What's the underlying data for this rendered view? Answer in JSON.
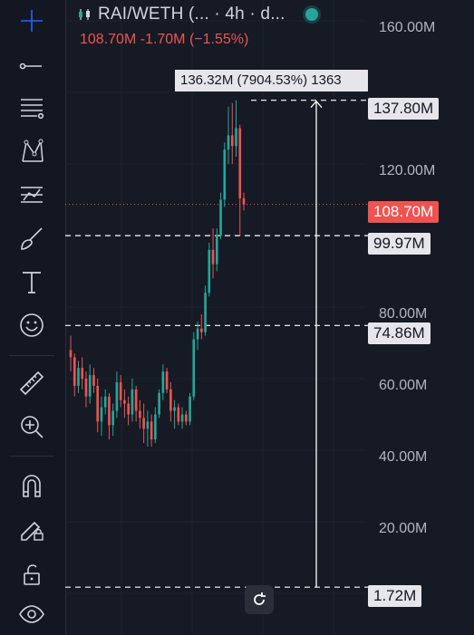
{
  "header": {
    "symbol": "RAI/WETH (... · 4h · d..."
  },
  "price_line": "108.70M  -1.70M  (−1.55%)",
  "measure_label": "136.32M (7904.53%)  1363",
  "price_axis": [
    "160.00M",
    "120.00M",
    "80.00M",
    "60.00M",
    "40.00M",
    "20.00M"
  ],
  "price_tags": {
    "top": "137.80M",
    "current": "108.70M",
    "level1": "99.97M",
    "level2": "74.86M",
    "bottom": "1.72M"
  },
  "colors": {
    "up": "#26a69a",
    "down": "#ef5350",
    "background": "#161a25"
  },
  "toolbar_icons": [
    "crosshair-icon",
    "trend-line-icon",
    "fib-retracement-icon",
    "pattern-icon",
    "prediction-icon",
    "brush-icon",
    "text-icon",
    "emoji-icon",
    "ruler-icon",
    "zoom-in-icon",
    "magnet-icon",
    "lock-drawing-icon",
    "unlock-icon",
    "eye-icon"
  ],
  "chart_data": {
    "type": "candlestick",
    "y_unit": "M",
    "candles": [
      {
        "o": 68,
        "h": 72,
        "l": 62,
        "c": 66
      },
      {
        "o": 66,
        "h": 67,
        "l": 55,
        "c": 58
      },
      {
        "o": 58,
        "h": 65,
        "l": 56,
        "c": 63
      },
      {
        "o": 63,
        "h": 66,
        "l": 57,
        "c": 60
      },
      {
        "o": 60,
        "h": 62,
        "l": 52,
        "c": 55
      },
      {
        "o": 55,
        "h": 64,
        "l": 53,
        "c": 61
      },
      {
        "o": 61,
        "h": 63,
        "l": 56,
        "c": 58
      },
      {
        "o": 58,
        "h": 60,
        "l": 45,
        "c": 48
      },
      {
        "o": 48,
        "h": 55,
        "l": 44,
        "c": 52
      },
      {
        "o": 52,
        "h": 57,
        "l": 50,
        "c": 55
      },
      {
        "o": 55,
        "h": 56,
        "l": 43,
        "c": 47
      },
      {
        "o": 47,
        "h": 53,
        "l": 44,
        "c": 51
      },
      {
        "o": 51,
        "h": 62,
        "l": 49,
        "c": 59
      },
      {
        "o": 59,
        "h": 61,
        "l": 52,
        "c": 54
      },
      {
        "o": 54,
        "h": 57,
        "l": 49,
        "c": 53
      },
      {
        "o": 53,
        "h": 55,
        "l": 47,
        "c": 50
      },
      {
        "o": 50,
        "h": 60,
        "l": 48,
        "c": 57
      },
      {
        "o": 57,
        "h": 58,
        "l": 48,
        "c": 51
      },
      {
        "o": 51,
        "h": 54,
        "l": 46,
        "c": 49
      },
      {
        "o": 49,
        "h": 53,
        "l": 42,
        "c": 46
      },
      {
        "o": 46,
        "h": 51,
        "l": 41,
        "c": 48
      },
      {
        "o": 48,
        "h": 50,
        "l": 41,
        "c": 43
      },
      {
        "o": 43,
        "h": 52,
        "l": 42,
        "c": 50
      },
      {
        "o": 50,
        "h": 57,
        "l": 49,
        "c": 56
      },
      {
        "o": 56,
        "h": 64,
        "l": 54,
        "c": 62
      },
      {
        "o": 62,
        "h": 63,
        "l": 56,
        "c": 57
      },
      {
        "o": 57,
        "h": 59,
        "l": 48,
        "c": 51
      },
      {
        "o": 51,
        "h": 54,
        "l": 46,
        "c": 52
      },
      {
        "o": 52,
        "h": 53,
        "l": 47,
        "c": 48
      },
      {
        "o": 48,
        "h": 52,
        "l": 46,
        "c": 50
      },
      {
        "o": 50,
        "h": 51,
        "l": 47,
        "c": 48
      },
      {
        "o": 48,
        "h": 56,
        "l": 47,
        "c": 55
      },
      {
        "o": 55,
        "h": 73,
        "l": 54,
        "c": 71
      },
      {
        "o": 71,
        "h": 76,
        "l": 68,
        "c": 74
      },
      {
        "o": 74,
        "h": 78,
        "l": 71,
        "c": 73
      },
      {
        "o": 73,
        "h": 86,
        "l": 72,
        "c": 84
      },
      {
        "o": 84,
        "h": 98,
        "l": 83,
        "c": 96
      },
      {
        "o": 96,
        "h": 102,
        "l": 88,
        "c": 92
      },
      {
        "o": 92,
        "h": 102,
        "l": 90,
        "c": 100
      },
      {
        "o": 100,
        "h": 112,
        "l": 99,
        "c": 110
      },
      {
        "o": 110,
        "h": 126,
        "l": 108,
        "c": 124
      },
      {
        "o": 124,
        "h": 136,
        "l": 120,
        "c": 128
      },
      {
        "o": 128,
        "h": 137,
        "l": 120,
        "c": 125
      },
      {
        "o": 125,
        "h": 137.8,
        "l": 122,
        "c": 130
      },
      {
        "o": 130,
        "h": 131,
        "l": 99.97,
        "c": 110.4
      },
      {
        "o": 110.4,
        "h": 112,
        "l": 107,
        "c": 108.7
      }
    ],
    "horizontal_levels": [
      137.8,
      99.97,
      74.86,
      1.72
    ],
    "current_price": 108.7,
    "ylim": [
      0,
      160
    ]
  }
}
